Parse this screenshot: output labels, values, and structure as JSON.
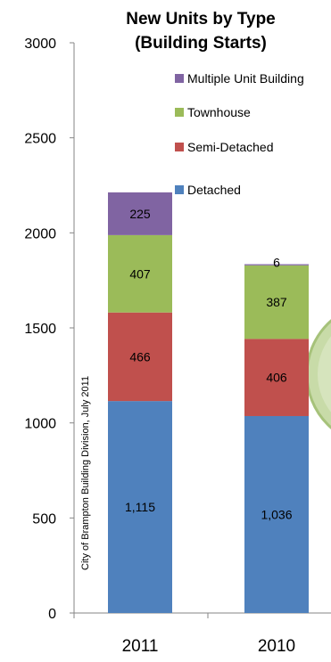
{
  "chart_data": {
    "type": "bar",
    "stacked": true,
    "title": [
      "New Units by Type",
      "(Building Starts)"
    ],
    "categories": [
      "2011",
      "2010"
    ],
    "series": [
      {
        "name": "Detached",
        "values": [
          1115,
          1036
        ],
        "labels": [
          "1,115",
          "1,036"
        ],
        "color": "#4f81bd"
      },
      {
        "name": "Semi-Detached",
        "values": [
          466,
          406
        ],
        "labels": [
          "466",
          "406"
        ],
        "color": "#c0504d"
      },
      {
        "name": "Townhouse",
        "values": [
          407,
          387
        ],
        "labels": [
          "407",
          "387"
        ],
        "color": "#9bbb59"
      },
      {
        "name": "Multiple Unit Building",
        "values": [
          225,
          6
        ],
        "labels": [
          "225",
          "6"
        ],
        "color": "#8064a2"
      }
    ],
    "ylim": [
      0,
      3000
    ],
    "yticks": [
      "0",
      "500",
      "1000",
      "1500",
      "2000",
      "2500",
      "3000"
    ],
    "legend_position": "top-right",
    "grid": false,
    "source_note": "City of Brampton Building Division, July 2011"
  }
}
